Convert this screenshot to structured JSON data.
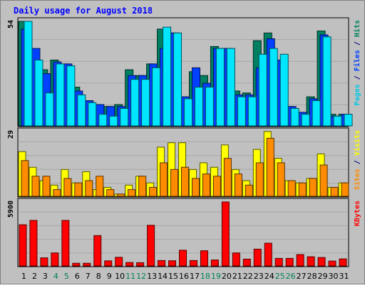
{
  "chart_data": {
    "type": "bar",
    "title": "Daily usage for August 2018",
    "categories": [
      "1",
      "2",
      "3",
      "4",
      "5",
      "6",
      "7",
      "8",
      "9",
      "10",
      "11",
      "12",
      "13",
      "14",
      "15",
      "16",
      "17",
      "18",
      "19",
      "20",
      "21",
      "22",
      "23",
      "24",
      "25",
      "26",
      "27",
      "28",
      "29",
      "30",
      "31"
    ],
    "weekend_days": [
      "4",
      "5",
      "11",
      "12",
      "18",
      "19",
      "25",
      "26"
    ],
    "panels": [
      {
        "id": "hits",
        "ymax_label": "54",
        "ylim": [
          0,
          54
        ],
        "axis_title_parts": [
          {
            "text": "Pages",
            "color": "#00c8e6"
          },
          {
            "text": " / ",
            "color": "#000080"
          },
          {
            "text": "Files",
            "color": "#0040ff"
          },
          {
            "text": " / ",
            "color": "#000080"
          },
          {
            "text": "Hits",
            "color": "#008060"
          }
        ],
        "series": [
          {
            "name": "Hits",
            "color": "#008060",
            "values": [
              54,
              38,
              29,
              34,
              32,
              20,
              13,
              11,
              10,
              11,
              29,
              26,
              32,
              50,
              48,
              15,
              28,
              26,
              41,
              40,
              18,
              17,
              44,
              48,
              34,
              10,
              7,
              15,
              49,
              6,
              6
            ]
          },
          {
            "name": "Files",
            "color": "#0040ff",
            "values": [
              50,
              40,
              27,
              33,
              32,
              18,
              13,
              11,
              10,
              10,
              26,
              26,
              32,
              40,
              48,
              15,
              30,
              22,
              40,
              40,
              16,
              16,
              30,
              45,
              34,
              10,
              7,
              14,
              47,
              5,
              6
            ]
          },
          {
            "name": "Pages",
            "color": "#00e6ff",
            "values": [
              54,
              34,
              17,
              32,
              31,
              16,
              12,
              6,
              5,
              9,
              24,
              24,
              30,
              51,
              48,
              14,
              20,
              20,
              40,
              40,
              15,
              15,
              37,
              40,
              37,
              9,
              6,
              13,
              46,
              5,
              6
            ]
          }
        ]
      },
      {
        "id": "visits",
        "ymax_label": "29",
        "ylim": [
          0,
          29
        ],
        "axis_title_parts": [
          {
            "text": "Sites",
            "color": "#ff8c00"
          },
          {
            "text": " / ",
            "color": "#000080"
          },
          {
            "text": "Visits",
            "color": "#ffff00"
          }
        ],
        "series": [
          {
            "name": "Visits",
            "color": "#ffff00",
            "values": [
              20,
              13,
              7,
              5,
              12,
              6,
              11,
              3,
              4,
              1,
              5,
              9,
              6,
              22,
              24,
              24,
              12,
              15,
              13,
              23,
              12,
              7,
              21,
              29,
              17,
              7,
              6,
              8,
              19,
              4,
              6
            ]
          },
          {
            "name": "Sites",
            "color": "#ff8c00",
            "values": [
              16,
              9,
              9,
              3,
              8,
              6,
              7,
              9,
              3,
              1,
              3,
              9,
              4,
              15,
              12,
              13,
              8,
              10,
              9,
              17,
              10,
              5,
              15,
              26,
              15,
              7,
              6,
              8,
              14,
              4,
              6
            ]
          }
        ]
      },
      {
        "id": "kbytes",
        "ymax_label": "5900",
        "ylim": [
          0,
          5900
        ],
        "axis_title_parts": [
          {
            "text": "KBytes",
            "color": "#ff0000"
          }
        ],
        "series": [
          {
            "name": "KBytes",
            "color": "#ff0000",
            "values": [
              3800,
              4200,
              750,
              1200,
              4200,
              250,
              250,
              2800,
              470,
              800,
              320,
              300,
              3750,
              500,
              480,
              1450,
              500,
              1400,
              550,
              5900,
              1200,
              630,
              1550,
              2100,
              700,
              700,
              1050,
              850,
              780,
              450,
              650
            ]
          }
        ]
      }
    ],
    "grid": true,
    "legend": "right-vertical"
  }
}
